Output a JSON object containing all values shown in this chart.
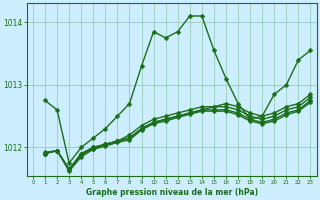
{
  "xlabel": "Graphe pression niveau de la mer (hPa)",
  "bg_color": "#cceeff",
  "grid_color": "#99ccbb",
  "line_color": "#1a6e1a",
  "marker": "D",
  "markersize": 2.5,
  "linewidth": 1.0,
  "ylim": [
    1011.55,
    1014.3
  ],
  "xlim": [
    -0.5,
    23.5
  ],
  "yticks": [
    1012,
    1013,
    1014
  ],
  "xticks": [
    0,
    1,
    2,
    3,
    4,
    5,
    6,
    7,
    8,
    9,
    10,
    11,
    12,
    13,
    14,
    15,
    16,
    17,
    18,
    19,
    20,
    21,
    22,
    23
  ],
  "series": [
    {
      "x": [
        1,
        2,
        3,
        4,
        5,
        6,
        7,
        8,
        9,
        10,
        11,
        12,
        13,
        14,
        15,
        16,
        17,
        18,
        19,
        20,
        21,
        22,
        23
      ],
      "y": [
        1012.75,
        1012.6,
        1011.75,
        1012.0,
        1012.15,
        1012.3,
        1012.5,
        1012.7,
        1013.3,
        1013.85,
        1013.75,
        1013.85,
        1014.1,
        1014.1,
        1013.55,
        1013.1,
        1012.7,
        1012.45,
        1012.5,
        1012.85,
        1013.0,
        1013.4,
        1013.55
      ]
    },
    {
      "x": [
        1,
        2,
        3,
        4,
        5,
        6,
        7,
        8,
        9,
        10,
        11,
        12,
        13,
        14,
        15,
        16,
        17,
        18,
        19,
        20,
        21,
        22,
        23
      ],
      "y": [
        1011.9,
        1011.95,
        1011.65,
        1011.9,
        1012.0,
        1012.05,
        1012.1,
        1012.15,
        1012.3,
        1012.4,
        1012.45,
        1012.5,
        1012.55,
        1012.6,
        1012.65,
        1012.7,
        1012.65,
        1012.55,
        1012.5,
        1012.55,
        1012.65,
        1012.7,
        1012.85
      ]
    },
    {
      "x": [
        1,
        2,
        3,
        4,
        5,
        6,
        7,
        8,
        9,
        10,
        11,
        12,
        13,
        14,
        15,
        16,
        17,
        18,
        19,
        20,
        21,
        22,
        23
      ],
      "y": [
        1011.9,
        1011.95,
        1011.65,
        1011.9,
        1012.0,
        1012.05,
        1012.1,
        1012.2,
        1012.35,
        1012.45,
        1012.5,
        1012.55,
        1012.6,
        1012.65,
        1012.65,
        1012.65,
        1012.6,
        1012.5,
        1012.45,
        1012.5,
        1012.6,
        1012.65,
        1012.8
      ]
    },
    {
      "x": [
        1,
        2,
        3,
        4,
        5,
        6,
        7,
        8,
        9,
        10,
        11,
        12,
        13,
        14,
        15,
        16,
        17,
        18,
        19,
        20,
        21,
        22,
        23
      ],
      "y": [
        1011.92,
        1011.95,
        1011.65,
        1011.88,
        1011.98,
        1012.05,
        1012.1,
        1012.15,
        1012.3,
        1012.4,
        1012.45,
        1012.5,
        1012.55,
        1012.6,
        1012.6,
        1012.6,
        1012.55,
        1012.45,
        1012.4,
        1012.45,
        1012.55,
        1012.6,
        1012.75
      ]
    },
    {
      "x": [
        1,
        2,
        3,
        4,
        5,
        6,
        7,
        8,
        9,
        10,
        11,
        12,
        13,
        14,
        15,
        16,
        17,
        18,
        19,
        20,
        21,
        22,
        23
      ],
      "y": [
        1011.9,
        1011.95,
        1011.62,
        1011.85,
        1011.97,
        1012.02,
        1012.08,
        1012.12,
        1012.28,
        1012.38,
        1012.42,
        1012.48,
        1012.53,
        1012.58,
        1012.58,
        1012.58,
        1012.52,
        1012.42,
        1012.38,
        1012.42,
        1012.52,
        1012.58,
        1012.72
      ]
    }
  ]
}
